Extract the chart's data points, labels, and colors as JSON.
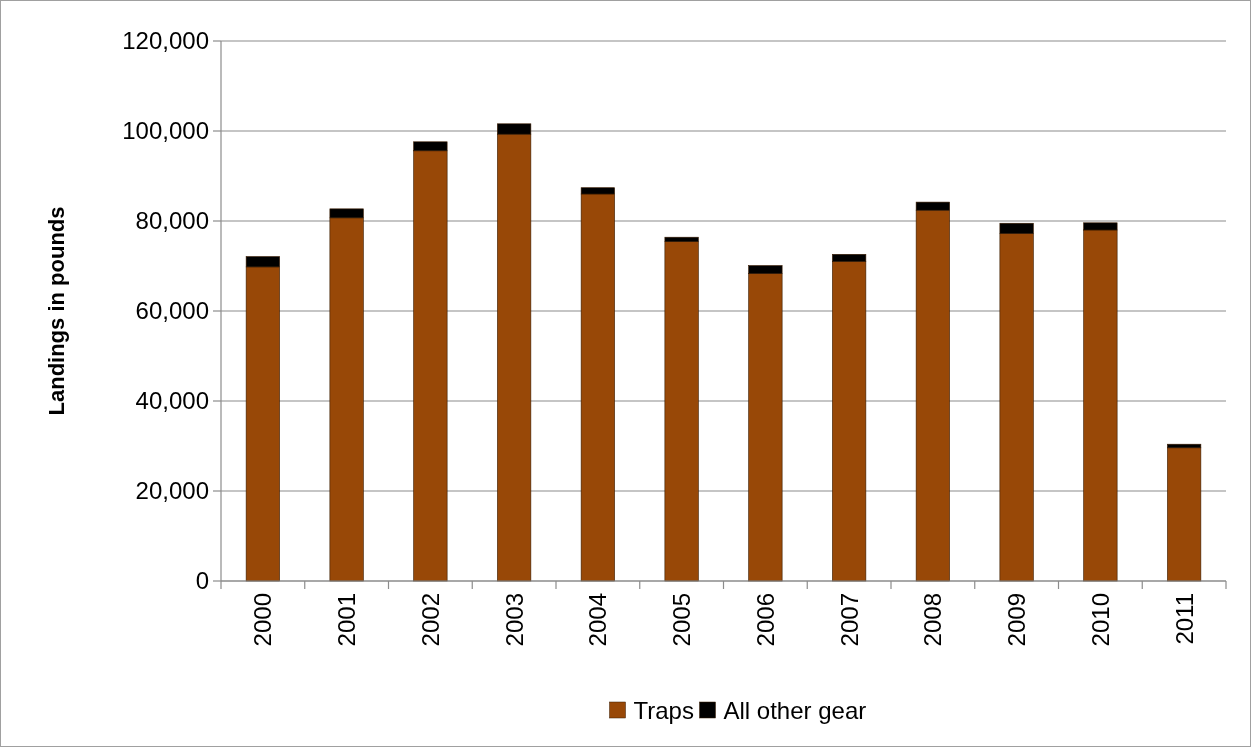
{
  "chart_data": {
    "type": "bar",
    "stacked": true,
    "ylabel": "Landings in pounds",
    "categories": [
      "2000",
      "2001",
      "2002",
      "2003",
      "2004",
      "2005",
      "2006",
      "2007",
      "2008",
      "2009",
      "2010",
      "2011"
    ],
    "series": [
      {
        "name": "Traps",
        "color": "#984807",
        "values": [
          69800,
          80700,
          95600,
          99300,
          86000,
          75400,
          68300,
          71000,
          82400,
          77200,
          78000,
          29600
        ]
      },
      {
        "name": "All other gear",
        "color": "#000000",
        "values": [
          2300,
          2000,
          2000,
          2300,
          1400,
          1000,
          1800,
          1600,
          1800,
          2300,
          1600,
          800
        ]
      }
    ],
    "ylim": [
      0,
      120000
    ],
    "yticks": [
      {
        "value": 0,
        "label": "0"
      },
      {
        "value": 20000,
        "label": "20,000"
      },
      {
        "value": 40000,
        "label": "40,000"
      },
      {
        "value": 60000,
        "label": "60,000"
      },
      {
        "value": 80000,
        "label": "80,000"
      },
      {
        "value": 100000,
        "label": "100,000"
      },
      {
        "value": 120000,
        "label": "120,000"
      }
    ],
    "grid": "y",
    "legend": "bottom"
  }
}
